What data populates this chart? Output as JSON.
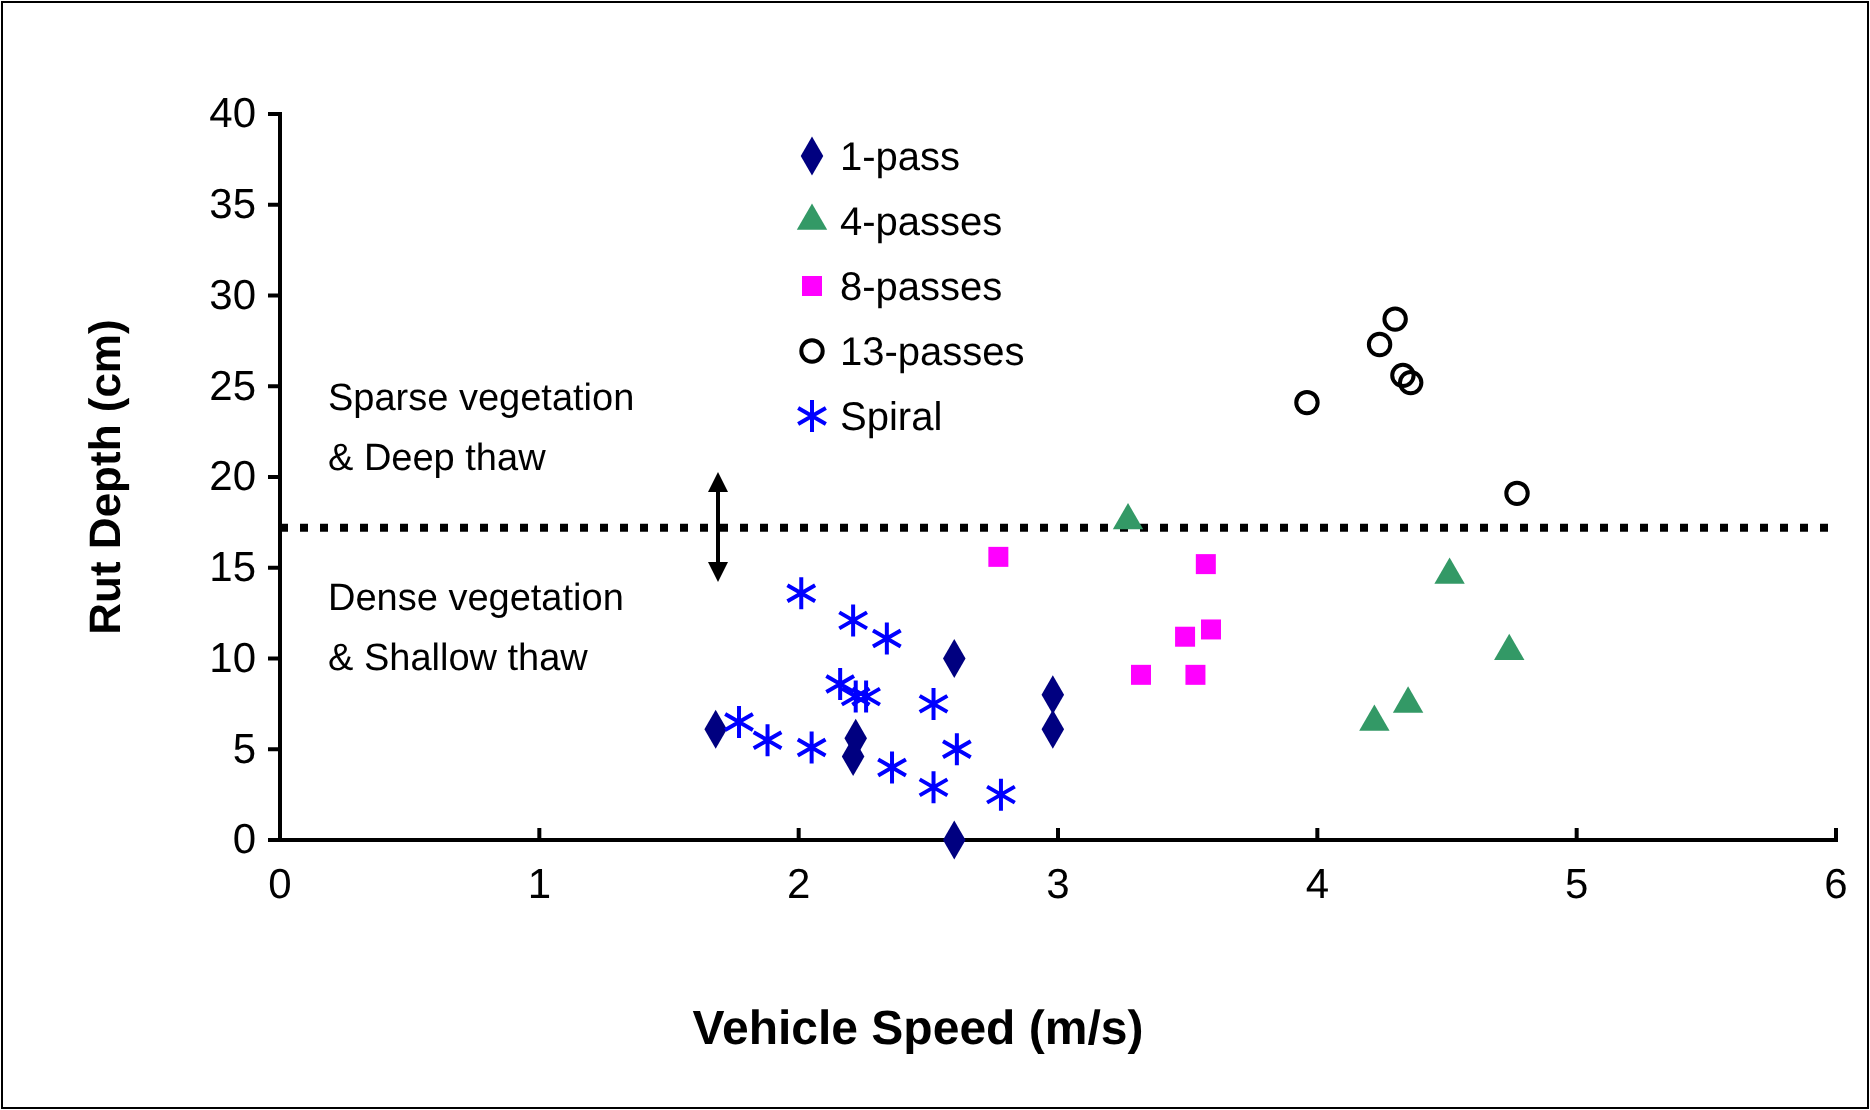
{
  "chart_data": {
    "type": "scatter",
    "xlabel": "Vehicle Speed (m/s)",
    "ylabel": "Rut Depth (cm)",
    "xlim": [
      0,
      6
    ],
    "xticks": [
      0,
      1,
      2,
      3,
      4,
      5,
      6
    ],
    "ylim": [
      0,
      40
    ],
    "yticks": [
      0,
      5,
      10,
      15,
      20,
      25,
      30,
      35,
      40
    ],
    "grid": false,
    "legend": "top left",
    "series": [
      {
        "name": "1-pass",
        "color": "#000080",
        "marker": "diamond",
        "x": [
          1.68,
          2.22,
          2.21,
          2.6,
          2.6,
          2.98,
          2.98
        ],
        "values": [
          6.1,
          5.6,
          4.6,
          10,
          0,
          8,
          6.1
        ]
      },
      {
        "name": "4-passes",
        "color": "#339966",
        "marker": "triangle",
        "x": [
          3.27,
          4.51,
          4.74,
          4.35,
          4.22
        ],
        "values": [
          17.6,
          14.6,
          10.4,
          7.5,
          6.5
        ]
      },
      {
        "name": "8-passes",
        "color": "#ff00ff",
        "marker": "square",
        "x": [
          2.77,
          3.57,
          3.49,
          3.59,
          3.32,
          3.53
        ],
        "values": [
          15.6,
          15.2,
          11.2,
          11.6,
          9.1,
          9.1
        ]
      },
      {
        "name": "13-passes",
        "color": "#000000",
        "marker": "circle",
        "x": [
          3.96,
          4.24,
          4.3,
          4.33,
          4.36,
          4.77
        ],
        "values": [
          24.1,
          27.3,
          28.7,
          25.6,
          25.2,
          19.1
        ]
      },
      {
        "name": "Spiral",
        "color": "#0000ff",
        "marker": "cross",
        "x": [
          1.77,
          1.88,
          2.01,
          2.05,
          2.16,
          2.21,
          2.22,
          2.26,
          2.34,
          2.36,
          2.52,
          2.52,
          2.61,
          2.78
        ],
        "values": [
          6.5,
          5.5,
          13.6,
          5.1,
          8.6,
          12.1,
          7.9,
          7.9,
          11.1,
          4,
          7.5,
          2.9,
          5,
          2.5
        ]
      }
    ],
    "ref_lines": [
      {
        "axis": "y",
        "value": 17.2,
        "color": "#000000",
        "line_style": "dotted"
      }
    ],
    "annotations": [
      "Sparse vegetation\n& Deep thaw",
      "Dense vegetation\n& Shallow thaw"
    ]
  }
}
